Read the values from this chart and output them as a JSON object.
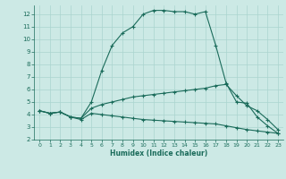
{
  "xlabel": "Humidex (Indice chaleur)",
  "background_color": "#cce9e5",
  "grid_color": "#aad4cf",
  "line_color": "#1a6b5a",
  "xlim": [
    -0.5,
    23.5
  ],
  "ylim": [
    2,
    12.7
  ],
  "yticks": [
    2,
    3,
    4,
    5,
    6,
    7,
    8,
    9,
    10,
    11,
    12
  ],
  "xticks": [
    0,
    1,
    2,
    3,
    4,
    5,
    6,
    7,
    8,
    9,
    10,
    11,
    12,
    13,
    14,
    15,
    16,
    17,
    18,
    19,
    20,
    21,
    22,
    23
  ],
  "curve_max": {
    "x": [
      0,
      1,
      2,
      3,
      4,
      5,
      6,
      7,
      8,
      9,
      10,
      11,
      12,
      13,
      14,
      15,
      16,
      17,
      18,
      19,
      20,
      21,
      22,
      23
    ],
    "y": [
      4.3,
      4.1,
      4.2,
      3.8,
      3.7,
      5.0,
      7.5,
      9.5,
      10.5,
      11.0,
      12.0,
      12.3,
      12.3,
      12.2,
      12.2,
      12.0,
      12.2,
      9.5,
      6.5,
      5.0,
      4.9,
      3.8,
      3.1,
      2.5
    ]
  },
  "curve_mean": {
    "x": [
      0,
      1,
      2,
      3,
      4,
      5,
      6,
      7,
      8,
      9,
      10,
      11,
      12,
      13,
      14,
      15,
      16,
      17,
      18,
      19,
      20,
      21,
      22,
      23
    ],
    "y": [
      4.3,
      4.1,
      4.2,
      3.8,
      3.7,
      4.5,
      4.8,
      5.0,
      5.2,
      5.4,
      5.5,
      5.6,
      5.7,
      5.8,
      5.9,
      6.0,
      6.1,
      6.3,
      6.4,
      5.5,
      4.7,
      4.3,
      3.6,
      2.8
    ]
  },
  "curve_min": {
    "x": [
      0,
      1,
      2,
      3,
      4,
      5,
      6,
      7,
      8,
      9,
      10,
      11,
      12,
      13,
      14,
      15,
      16,
      17,
      18,
      19,
      20,
      21,
      22,
      23
    ],
    "y": [
      4.3,
      4.1,
      4.2,
      3.8,
      3.6,
      4.1,
      4.0,
      3.9,
      3.8,
      3.7,
      3.6,
      3.55,
      3.5,
      3.45,
      3.4,
      3.35,
      3.3,
      3.25,
      3.1,
      2.95,
      2.8,
      2.7,
      2.6,
      2.5
    ]
  }
}
